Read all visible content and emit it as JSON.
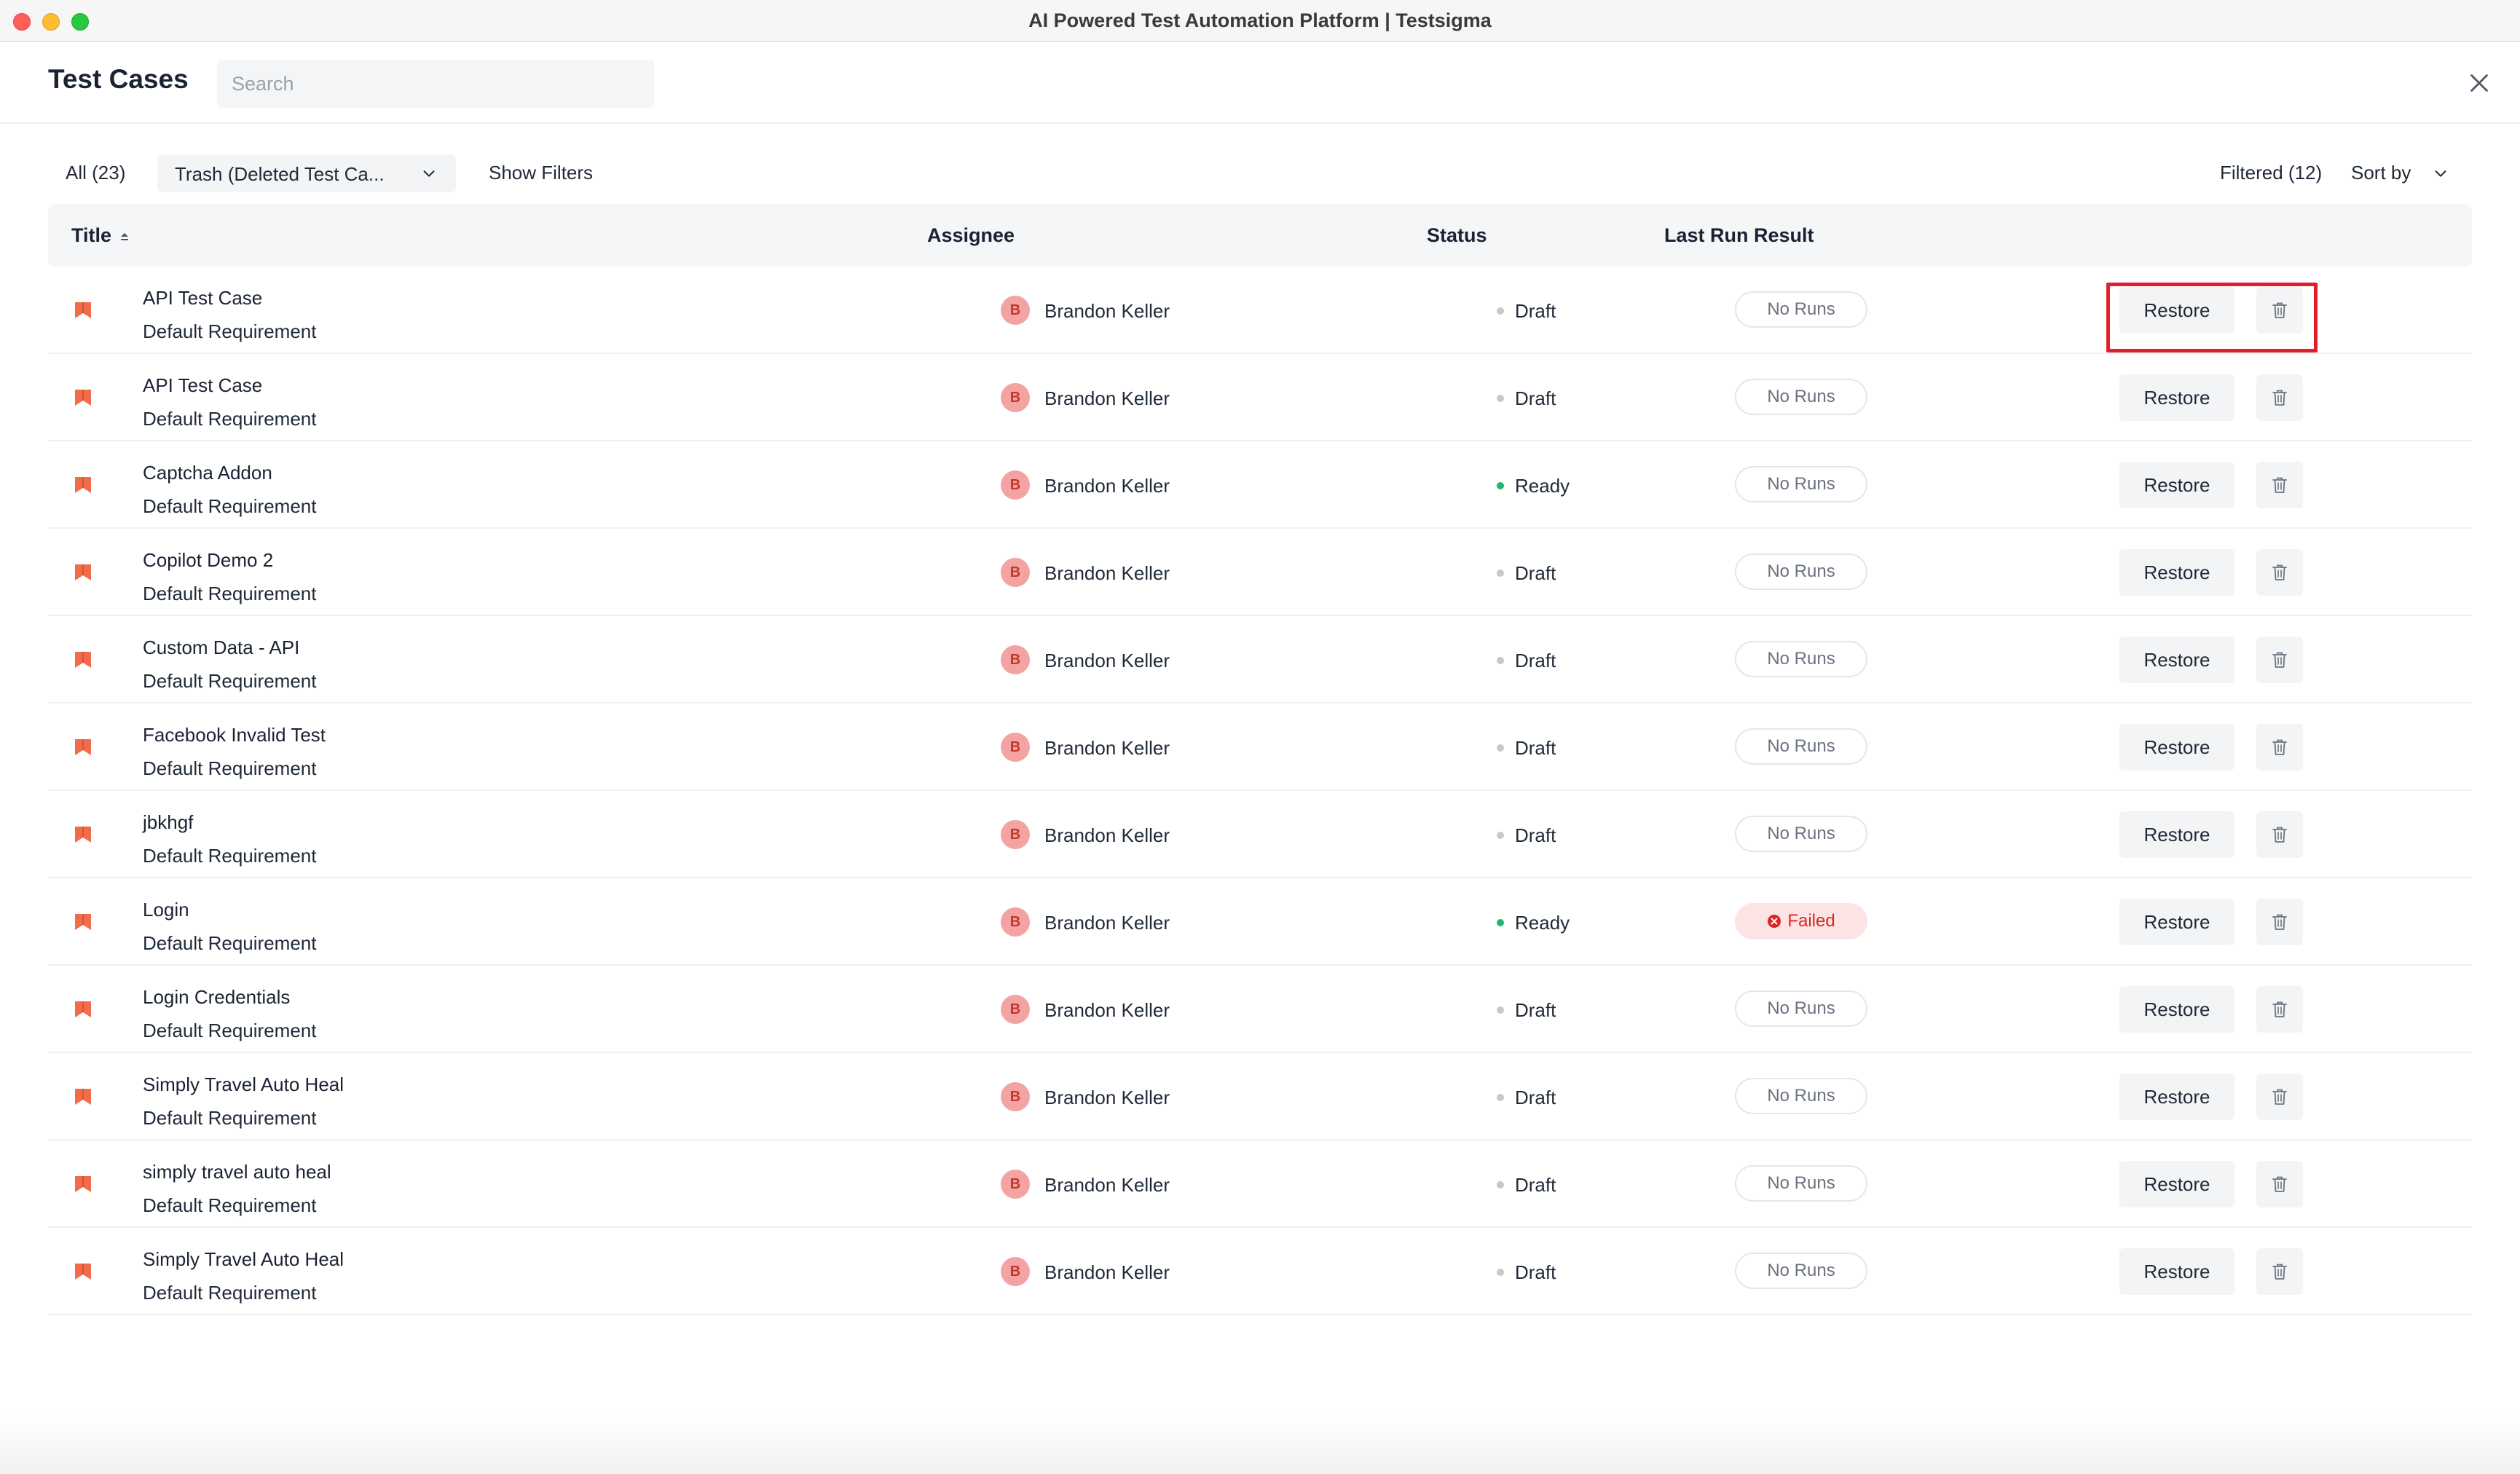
{
  "window": {
    "title": "AI Powered Test Automation Platform | Testsigma"
  },
  "header": {
    "title": "Test Cases",
    "search_placeholder": "Search"
  },
  "toolbar": {
    "all_label": "All (23)",
    "view_select": "Trash (Deleted Test Ca...",
    "show_filters": "Show Filters",
    "filtered": "Filtered (12)",
    "sort_by": "Sort by"
  },
  "table": {
    "columns": {
      "title": "Title",
      "assignee": "Assignee",
      "status": "Status",
      "last_run": "Last Run Result"
    },
    "restore_label": "Restore",
    "rows": [
      {
        "title": "API Test Case",
        "requirement": "Default Requirement",
        "avatar": "B",
        "assignee": "Brandon Keller",
        "status": "Draft",
        "last_run": "No Runs"
      },
      {
        "title": "API Test Case",
        "requirement": "Default Requirement",
        "avatar": "B",
        "assignee": "Brandon Keller",
        "status": "Draft",
        "last_run": "No Runs"
      },
      {
        "title": "Captcha Addon",
        "requirement": "Default Requirement",
        "avatar": "B",
        "assignee": "Brandon Keller",
        "status": "Ready",
        "last_run": "No Runs"
      },
      {
        "title": "Copilot Demo 2",
        "requirement": "Default Requirement",
        "avatar": "B",
        "assignee": "Brandon Keller",
        "status": "Draft",
        "last_run": "No Runs"
      },
      {
        "title": "Custom Data - API",
        "requirement": "Default Requirement",
        "avatar": "B",
        "assignee": "Brandon Keller",
        "status": "Draft",
        "last_run": "No Runs"
      },
      {
        "title": "Facebook Invalid Test",
        "requirement": "Default Requirement",
        "avatar": "B",
        "assignee": "Brandon Keller",
        "status": "Draft",
        "last_run": "No Runs"
      },
      {
        "title": "jbkhgf",
        "requirement": "Default Requirement",
        "avatar": "B",
        "assignee": "Brandon Keller",
        "status": "Draft",
        "last_run": "No Runs"
      },
      {
        "title": "Login",
        "requirement": "Default Requirement",
        "avatar": "B",
        "assignee": "Brandon Keller",
        "status": "Ready",
        "last_run": "Failed"
      },
      {
        "title": "Login Credentials",
        "requirement": "Default Requirement",
        "avatar": "B",
        "assignee": "Brandon Keller",
        "status": "Draft",
        "last_run": "No Runs"
      },
      {
        "title": "Simply Travel Auto Heal",
        "requirement": "Default Requirement",
        "avatar": "B",
        "assignee": "Brandon Keller",
        "status": "Draft",
        "last_run": "No Runs"
      },
      {
        "title": "simply travel auto heal",
        "requirement": "Default Requirement",
        "avatar": "B",
        "assignee": "Brandon Keller",
        "status": "Draft",
        "last_run": "No Runs"
      },
      {
        "title": "Simply Travel Auto Heal",
        "requirement": "Default Requirement",
        "avatar": "B",
        "assignee": "Brandon Keller",
        "status": "Draft",
        "last_run": "No Runs"
      }
    ]
  },
  "icons": {
    "row": "bookmark-icon",
    "delete": "trash-icon",
    "close": "close-icon",
    "sort": "sort-ascending-icon",
    "failed": "error-circle-icon"
  },
  "colors": {
    "accent": "#f26b4a",
    "ready_dot": "#22b573",
    "draft_dot": "#c4c8cf",
    "failed_text": "#dc2626",
    "failed_bg": "#fde4e4",
    "highlight": "#e11d2a"
  }
}
